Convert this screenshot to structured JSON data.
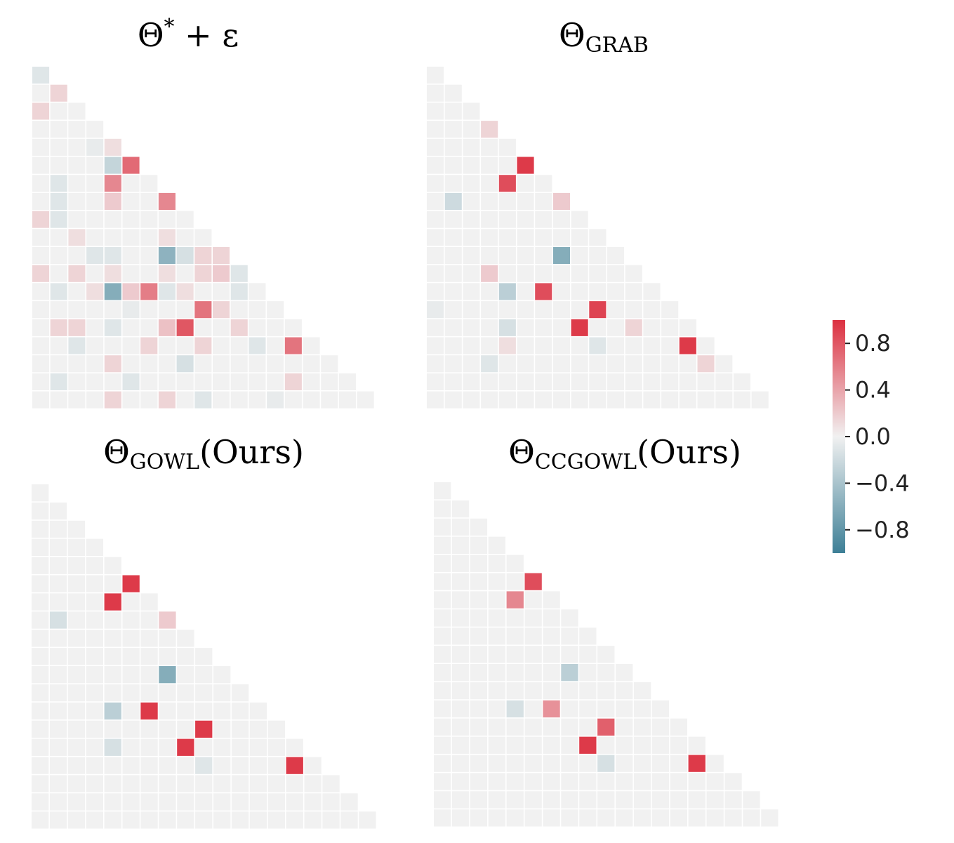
{
  "figure": {
    "colorbar": {
      "ticks": [
        {
          "value": 0.8,
          "label": "0.8"
        },
        {
          "value": 0.4,
          "label": "0.4"
        },
        {
          "value": 0.0,
          "label": "0.0"
        },
        {
          "value": -0.4,
          "label": "−0.4"
        },
        {
          "value": -0.8,
          "label": "−0.8"
        }
      ],
      "vmin": -1.0,
      "vmax": 1.0,
      "colors": {
        "negative": "#3d7f96",
        "zero": "#f1f1f1",
        "positive": "#dc3040"
      }
    }
  },
  "chart_data": [
    {
      "type": "heatmap",
      "title_main": "Θ",
      "title_sup": "*",
      "title_tail": " + ε",
      "title_sub": "",
      "n": 19,
      "cells": [
        [
          0,
          0,
          -0.1
        ],
        [
          1,
          1,
          0.15
        ],
        [
          2,
          0,
          0.15
        ],
        [
          4,
          3,
          -0.05
        ],
        [
          4,
          4,
          0.1
        ],
        [
          5,
          4,
          -0.25
        ],
        [
          5,
          5,
          0.7
        ],
        [
          6,
          1,
          -0.1
        ],
        [
          6,
          4,
          0.55
        ],
        [
          7,
          1,
          -0.1
        ],
        [
          7,
          4,
          0.2
        ],
        [
          7,
          7,
          0.55
        ],
        [
          8,
          0,
          0.15
        ],
        [
          8,
          1,
          -0.1
        ],
        [
          9,
          2,
          0.1
        ],
        [
          9,
          7,
          0.1
        ],
        [
          10,
          3,
          -0.1
        ],
        [
          10,
          4,
          -0.1
        ],
        [
          10,
          7,
          -0.55
        ],
        [
          10,
          8,
          -0.15
        ],
        [
          10,
          9,
          0.15
        ],
        [
          10,
          10,
          0.15
        ],
        [
          11,
          0,
          0.15
        ],
        [
          11,
          2,
          0.15
        ],
        [
          11,
          4,
          0.1
        ],
        [
          11,
          7,
          0.1
        ],
        [
          11,
          9,
          0.15
        ],
        [
          11,
          10,
          0.2
        ],
        [
          11,
          11,
          -0.1
        ],
        [
          12,
          1,
          -0.1
        ],
        [
          12,
          3,
          0.1
        ],
        [
          12,
          4,
          -0.6
        ],
        [
          12,
          5,
          0.2
        ],
        [
          12,
          6,
          0.6
        ],
        [
          12,
          7,
          -0.1
        ],
        [
          12,
          8,
          0.1
        ],
        [
          12,
          11,
          -0.1
        ],
        [
          13,
          5,
          -0.05
        ],
        [
          13,
          9,
          0.65
        ],
        [
          13,
          10,
          0.15
        ],
        [
          14,
          1,
          0.15
        ],
        [
          14,
          2,
          0.15
        ],
        [
          14,
          4,
          -0.1
        ],
        [
          14,
          7,
          0.25
        ],
        [
          14,
          8,
          0.8
        ],
        [
          14,
          11,
          0.15
        ],
        [
          15,
          2,
          -0.1
        ],
        [
          15,
          6,
          0.15
        ],
        [
          15,
          9,
          0.15
        ],
        [
          15,
          12,
          -0.1
        ],
        [
          15,
          14,
          0.65
        ],
        [
          16,
          4,
          0.15
        ],
        [
          16,
          8,
          -0.15
        ],
        [
          17,
          1,
          -0.1
        ],
        [
          17,
          5,
          -0.1
        ],
        [
          17,
          14,
          0.15
        ],
        [
          18,
          4,
          0.15
        ],
        [
          18,
          7,
          0.15
        ],
        [
          18,
          9,
          -0.1
        ],
        [
          18,
          13,
          -0.05
        ]
      ]
    },
    {
      "type": "heatmap",
      "title_main": "Θ",
      "title_sup": "",
      "title_tail": "",
      "title_sub": "GRAB",
      "n": 19,
      "cells": [
        [
          3,
          3,
          0.15
        ],
        [
          5,
          5,
          0.95
        ],
        [
          6,
          4,
          0.85
        ],
        [
          7,
          1,
          -0.2
        ],
        [
          7,
          7,
          0.2
        ],
        [
          10,
          7,
          -0.6
        ],
        [
          11,
          3,
          0.2
        ],
        [
          12,
          4,
          -0.3
        ],
        [
          12,
          6,
          0.85
        ],
        [
          13,
          0,
          -0.05
        ],
        [
          13,
          9,
          0.9
        ],
        [
          14,
          4,
          -0.15
        ],
        [
          14,
          8,
          0.95
        ],
        [
          14,
          11,
          0.15
        ],
        [
          15,
          4,
          0.1
        ],
        [
          15,
          9,
          -0.1
        ],
        [
          15,
          14,
          0.95
        ],
        [
          16,
          3,
          -0.1
        ],
        [
          16,
          15,
          0.15
        ]
      ]
    },
    {
      "type": "heatmap",
      "title_main": "Θ",
      "title_sup": "",
      "title_tail": "(Ours)",
      "title_sub": "GOWL",
      "n": 19,
      "cells": [
        [
          5,
          5,
          0.95
        ],
        [
          6,
          4,
          0.95
        ],
        [
          7,
          1,
          -0.15
        ],
        [
          7,
          7,
          0.2
        ],
        [
          10,
          7,
          -0.6
        ],
        [
          12,
          4,
          -0.3
        ],
        [
          12,
          6,
          0.95
        ],
        [
          13,
          9,
          0.95
        ],
        [
          14,
          4,
          -0.15
        ],
        [
          14,
          8,
          0.95
        ],
        [
          15,
          9,
          -0.1
        ],
        [
          15,
          14,
          0.95
        ]
      ]
    },
    {
      "type": "heatmap",
      "title_main": "Θ",
      "title_sup": "",
      "title_tail": "(Ours)",
      "title_sub": "CCGOWL",
      "n": 19,
      "cells": [
        [
          5,
          5,
          0.85
        ],
        [
          6,
          4,
          0.55
        ],
        [
          10,
          7,
          -0.3
        ],
        [
          12,
          4,
          -0.15
        ],
        [
          12,
          6,
          0.5
        ],
        [
          13,
          9,
          0.75
        ],
        [
          14,
          8,
          0.95
        ],
        [
          15,
          9,
          -0.15
        ],
        [
          15,
          14,
          0.95
        ]
      ]
    }
  ]
}
